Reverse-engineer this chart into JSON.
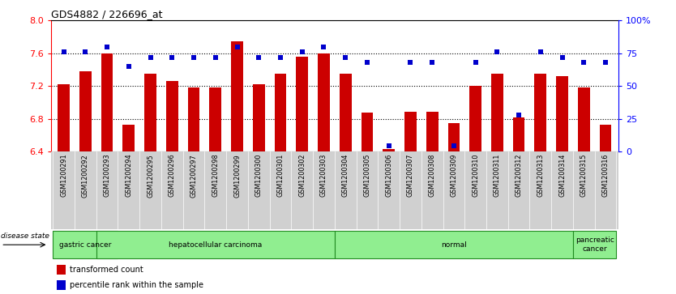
{
  "title": "GDS4882 / 226696_at",
  "samples": [
    "GSM1200291",
    "GSM1200292",
    "GSM1200293",
    "GSM1200294",
    "GSM1200295",
    "GSM1200296",
    "GSM1200297",
    "GSM1200298",
    "GSM1200299",
    "GSM1200300",
    "GSM1200301",
    "GSM1200302",
    "GSM1200303",
    "GSM1200304",
    "GSM1200305",
    "GSM1200306",
    "GSM1200307",
    "GSM1200308",
    "GSM1200309",
    "GSM1200310",
    "GSM1200311",
    "GSM1200312",
    "GSM1200313",
    "GSM1200314",
    "GSM1200315",
    "GSM1200316"
  ],
  "transformed_count": [
    7.22,
    7.38,
    7.6,
    6.73,
    7.35,
    7.26,
    7.18,
    7.18,
    7.75,
    7.22,
    7.35,
    7.56,
    7.6,
    7.35,
    6.87,
    6.43,
    6.88,
    6.88,
    6.75,
    7.2,
    7.35,
    6.82,
    7.35,
    7.32,
    7.18,
    6.73
  ],
  "percentile_rank": [
    76,
    76,
    80,
    65,
    72,
    72,
    72,
    72,
    80,
    72,
    72,
    76,
    80,
    72,
    68,
    4,
    68,
    68,
    4,
    68,
    76,
    28,
    76,
    72,
    68,
    68
  ],
  "bar_color": "#CC0000",
  "dot_color": "#0000CC",
  "ylim_left": [
    6.4,
    8.0
  ],
  "ylim_right": [
    0,
    100
  ],
  "yticks_left": [
    6.4,
    6.8,
    7.2,
    7.6,
    8.0
  ],
  "yticks_right": [
    0,
    25,
    50,
    75,
    100
  ],
  "ytick_labels_right": [
    "0",
    "25",
    "50",
    "75",
    "100%"
  ],
  "hgrid_lines": [
    6.8,
    7.2,
    7.6
  ],
  "groups": [
    {
      "label": "gastric cancer",
      "start": 0,
      "end": 2
    },
    {
      "label": "hepatocellular carcinoma",
      "start": 2,
      "end": 12
    },
    {
      "label": "normal",
      "start": 13,
      "end": 23
    },
    {
      "label": "pancreatic\ncancer",
      "start": 24,
      "end": 25
    }
  ],
  "group_color": "#90EE90",
  "group_edge_color": "#228B22",
  "xticklabel_bg": "#d0d0d0"
}
